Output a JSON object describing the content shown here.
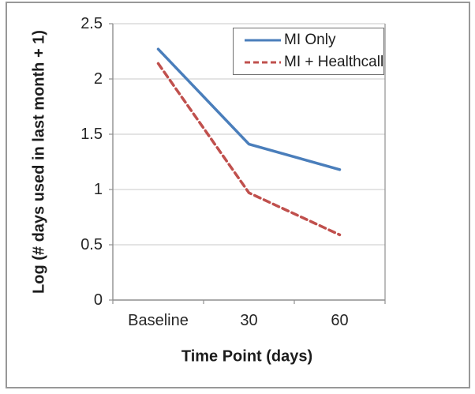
{
  "chart_data": {
    "type": "line",
    "title": "",
    "categories": [
      "Baseline",
      "30",
      "60"
    ],
    "series": [
      {
        "name": "MI Only",
        "values": [
          2.27,
          1.41,
          1.18
        ],
        "color": "#4a7ebb",
        "style": "solid"
      },
      {
        "name": "MI + Healthcall",
        "values": [
          2.14,
          0.97,
          0.59
        ],
        "color": "#c0504d",
        "style": "dashed"
      }
    ],
    "xlabel": "Time Point (days)",
    "ylabel": "Log (# days used in last month + 1)",
    "ylim": [
      0,
      2.5
    ],
    "yticks": [
      "0",
      "0.5",
      "1",
      "1.5",
      "2",
      "2.5"
    ],
    "grid": true,
    "legend_position": "top-right"
  },
  "colors": {
    "series_blue": "#4a7ebb",
    "series_red": "#c0504d",
    "gridline": "#c9c9c9",
    "axis": "#8f8f8f",
    "frame_border": "#989898",
    "legend_border": "#6f6f6f",
    "text": "#1c1c1c"
  }
}
